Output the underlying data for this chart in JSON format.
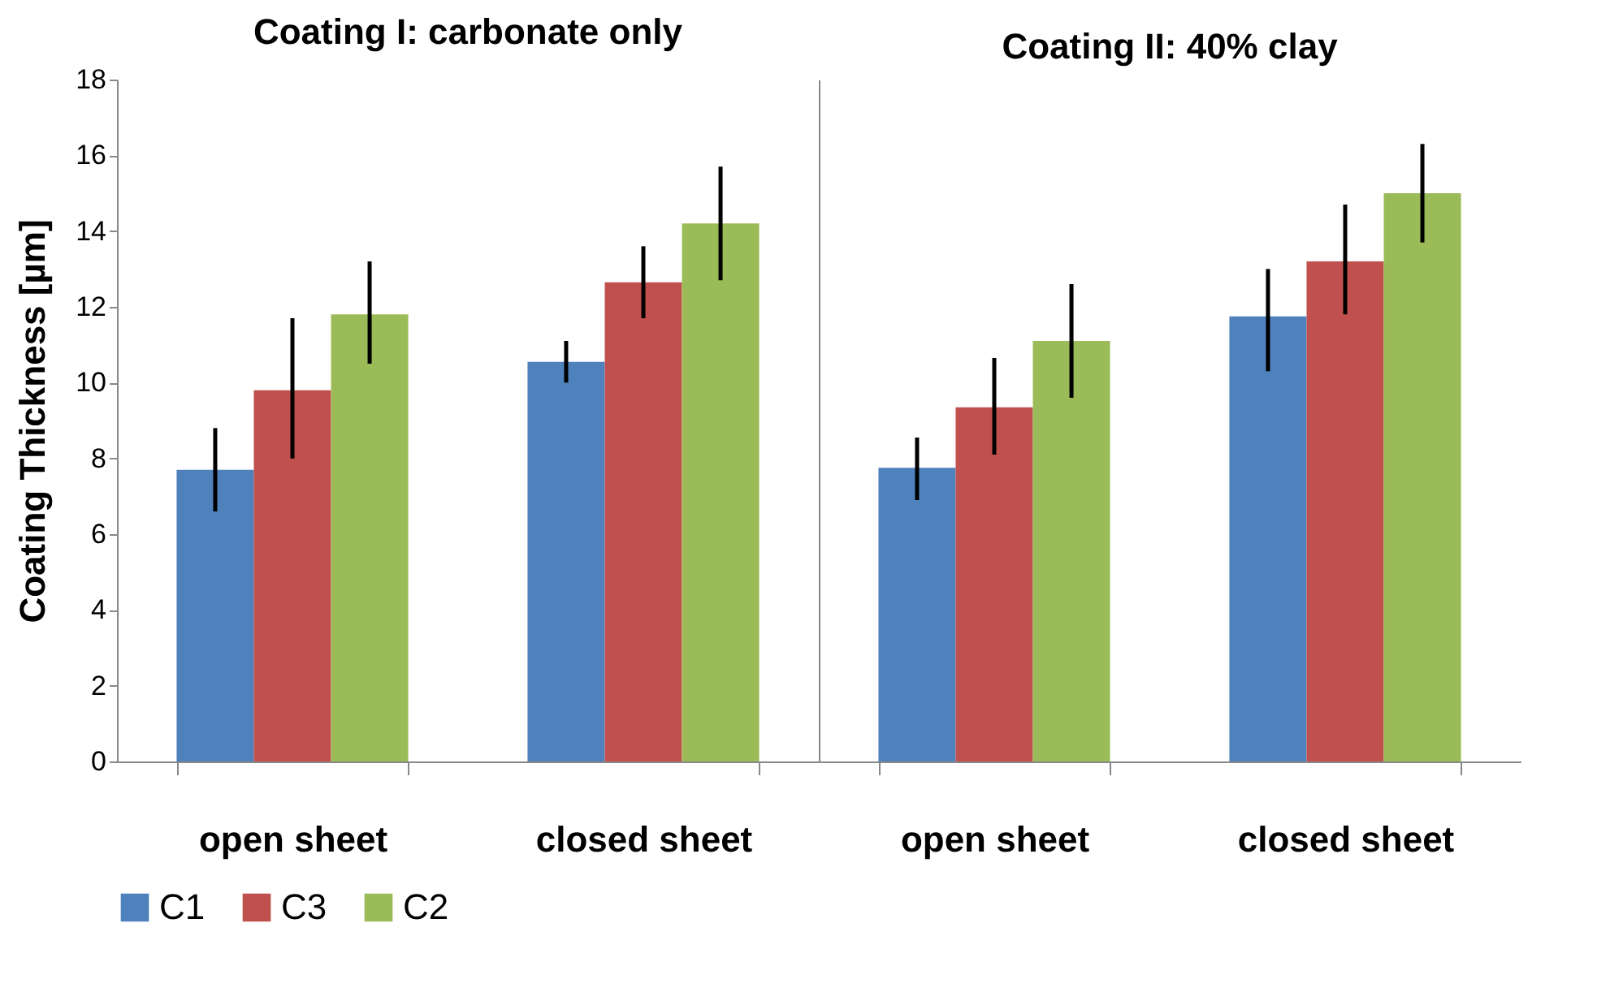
{
  "chart_data": [
    {
      "type": "bar",
      "title": "Coating I: carbonate only",
      "ylabel": "Coating Thickness [µm]",
      "categories": [
        "open sheet",
        "closed sheet"
      ],
      "ylim": [
        0,
        18
      ],
      "yticks": [
        0,
        2,
        4,
        6,
        8,
        10,
        12,
        14,
        16,
        18
      ],
      "legend": "bottom",
      "series": [
        {
          "name": "C1",
          "color": "#4f81bd",
          "values": [
            7.7,
            10.55
          ],
          "errors": [
            [
              6.6,
              8.8
            ],
            [
              10.0,
              11.1
            ]
          ]
        },
        {
          "name": "C3",
          "color": "#c0504d",
          "values": [
            9.8,
            12.65
          ],
          "errors": [
            [
              8.0,
              11.7
            ],
            [
              11.7,
              13.6
            ]
          ]
        },
        {
          "name": "C2",
          "color": "#9bbb59",
          "values": [
            11.8,
            14.2
          ],
          "errors": [
            [
              10.5,
              13.2
            ],
            [
              12.7,
              15.7
            ]
          ]
        }
      ]
    },
    {
      "type": "bar",
      "title": "Coating II: 40% clay",
      "categories": [
        "open sheet",
        "closed sheet"
      ],
      "ylim": [
        0,
        18
      ],
      "yticks": [
        0,
        2,
        4,
        6,
        8,
        10,
        12,
        14,
        16,
        18
      ],
      "tick_labels": "x",
      "legend": "bottom",
      "series": [
        {
          "name": "C1",
          "color": "#4f81bd",
          "values": [
            7.75,
            11.75
          ],
          "errors": [
            [
              6.9,
              8.55
            ],
            [
              10.3,
              13.0
            ]
          ]
        },
        {
          "name": "C3",
          "color": "#c0504d",
          "values": [
            9.35,
            13.2
          ],
          "errors": [
            [
              8.1,
              10.65
            ],
            [
              11.8,
              14.7
            ]
          ]
        },
        {
          "name": "C2",
          "color": "#9bbb59",
          "values": [
            11.1,
            15.0
          ],
          "errors": [
            [
              9.6,
              12.6
            ],
            [
              13.7,
              16.3
            ]
          ]
        }
      ]
    }
  ]
}
